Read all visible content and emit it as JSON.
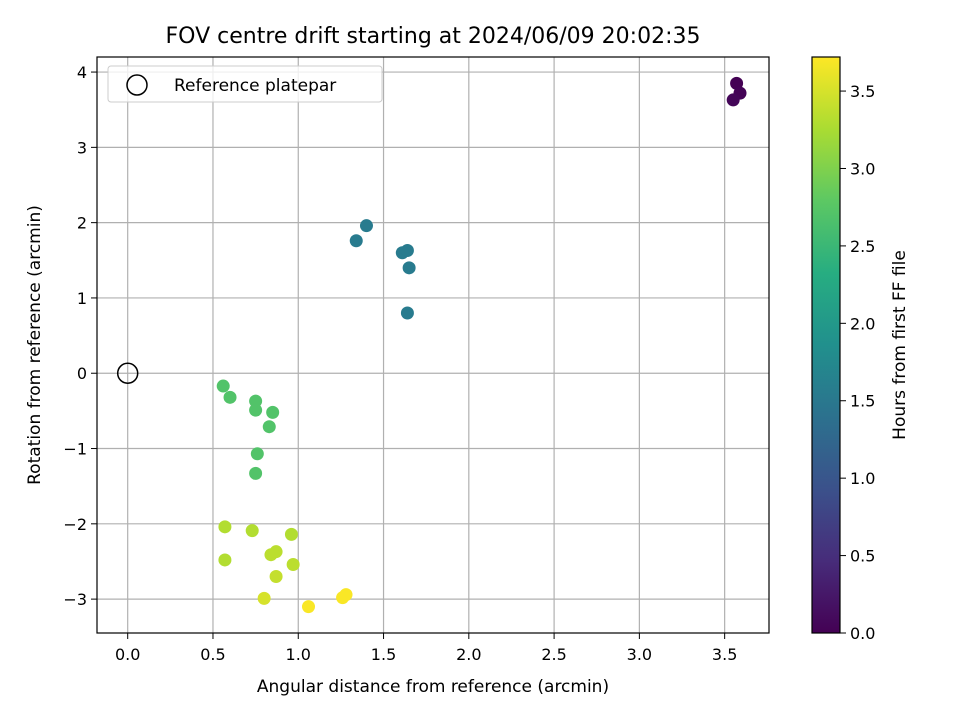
{
  "chart_data": {
    "type": "scatter",
    "title": "FOV centre drift starting at 2024/06/09 20:02:35",
    "xlabel": "Angular distance from reference (arcmin)",
    "ylabel": "Rotation from reference (arcmin)",
    "xlim": [
      -0.18,
      3.76
    ],
    "ylim": [
      -3.45,
      4.2
    ],
    "xticks": [
      0.0,
      0.5,
      1.0,
      1.5,
      2.0,
      2.5,
      3.0,
      3.5
    ],
    "xtick_labels": [
      "0.0",
      "0.5",
      "1.0",
      "1.5",
      "2.0",
      "2.5",
      "3.0",
      "3.5"
    ],
    "yticks": [
      -3,
      -2,
      -1,
      0,
      1,
      2,
      3,
      4
    ],
    "ytick_labels": [
      "−3",
      "−2",
      "−1",
      "0",
      "1",
      "2",
      "3",
      "4"
    ],
    "grid": true,
    "legend": {
      "placement": "upper-left",
      "entries": [
        {
          "label": "Reference platepar",
          "marker": "open-circle",
          "color": "#000000"
        }
      ]
    },
    "reference_point": {
      "x": 0.0,
      "y": 0.0
    },
    "colorbar": {
      "label": "Hours from first FF file",
      "colormap": "viridis",
      "range": [
        0.0,
        3.72
      ],
      "ticks": [
        0.0,
        0.5,
        1.0,
        1.5,
        2.0,
        2.5,
        3.0,
        3.5
      ],
      "tick_labels": [
        "0.0",
        "0.5",
        "1.0",
        "1.5",
        "2.0",
        "2.5",
        "3.0",
        "3.5"
      ]
    },
    "points": [
      {
        "x": 3.57,
        "y": 3.85,
        "hours": 0.0
      },
      {
        "x": 3.59,
        "y": 3.72,
        "hours": 0.02
      },
      {
        "x": 3.55,
        "y": 3.63,
        "hours": 0.05
      },
      {
        "x": 1.4,
        "y": 1.96,
        "hours": 1.55
      },
      {
        "x": 1.34,
        "y": 1.76,
        "hours": 1.55
      },
      {
        "x": 1.61,
        "y": 1.6,
        "hours": 1.55
      },
      {
        "x": 1.64,
        "y": 1.63,
        "hours": 1.55
      },
      {
        "x": 1.65,
        "y": 1.4,
        "hours": 1.55
      },
      {
        "x": 1.64,
        "y": 0.8,
        "hours": 1.55
      },
      {
        "x": 0.56,
        "y": -0.17,
        "hours": 2.7
      },
      {
        "x": 0.6,
        "y": -0.32,
        "hours": 2.7
      },
      {
        "x": 0.75,
        "y": -0.37,
        "hours": 2.7
      },
      {
        "x": 0.75,
        "y": -0.49,
        "hours": 2.7
      },
      {
        "x": 0.85,
        "y": -0.52,
        "hours": 2.7
      },
      {
        "x": 0.83,
        "y": -0.71,
        "hours": 2.7
      },
      {
        "x": 0.76,
        "y": -1.07,
        "hours": 2.7
      },
      {
        "x": 0.75,
        "y": -1.33,
        "hours": 2.7
      },
      {
        "x": 0.57,
        "y": -2.04,
        "hours": 3.3
      },
      {
        "x": 0.73,
        "y": -2.09,
        "hours": 3.3
      },
      {
        "x": 0.96,
        "y": -2.14,
        "hours": 3.3
      },
      {
        "x": 0.57,
        "y": -2.48,
        "hours": 3.3
      },
      {
        "x": 0.84,
        "y": -2.41,
        "hours": 3.35
      },
      {
        "x": 0.87,
        "y": -2.37,
        "hours": 3.35
      },
      {
        "x": 0.97,
        "y": -2.54,
        "hours": 3.35
      },
      {
        "x": 0.87,
        "y": -2.7,
        "hours": 3.4
      },
      {
        "x": 0.8,
        "y": -2.99,
        "hours": 3.5
      },
      {
        "x": 1.06,
        "y": -3.1,
        "hours": 3.7
      },
      {
        "x": 1.26,
        "y": -2.98,
        "hours": 3.7
      },
      {
        "x": 1.28,
        "y": -2.94,
        "hours": 3.7
      }
    ]
  }
}
